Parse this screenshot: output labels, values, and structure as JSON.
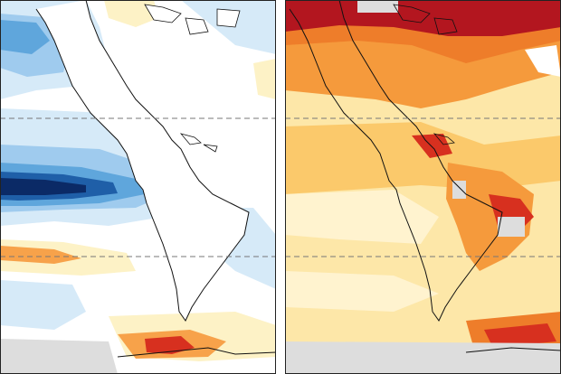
{
  "panels": [
    {
      "id": "left",
      "description_colors": {
        "background": "#ffffff",
        "light_blue": "#d6eaf8",
        "medium_blue": "#9fcbee",
        "blue": "#5fa6dc",
        "dark_blue": "#1f5fa8",
        "navy": "#0b2a66",
        "light_yellow": "#fdf2c6",
        "orange": "#f7a24a",
        "red": "#d7301f",
        "missing_gray": "#dddddd"
      }
    },
    {
      "id": "right",
      "description_colors": {
        "background": "#fde7a8",
        "pale": "#fff3cf",
        "light_orange": "#fbc96b",
        "orange": "#f59a3c",
        "deep_orange": "#ee7d2a",
        "red": "#d7301f",
        "dark_red": "#b3161f",
        "missing_gray": "#dddddd"
      }
    }
  ],
  "map": {
    "reference_lines": [
      "dashed-top",
      "dashed-bottom"
    ],
    "projection_region": "Americas"
  }
}
